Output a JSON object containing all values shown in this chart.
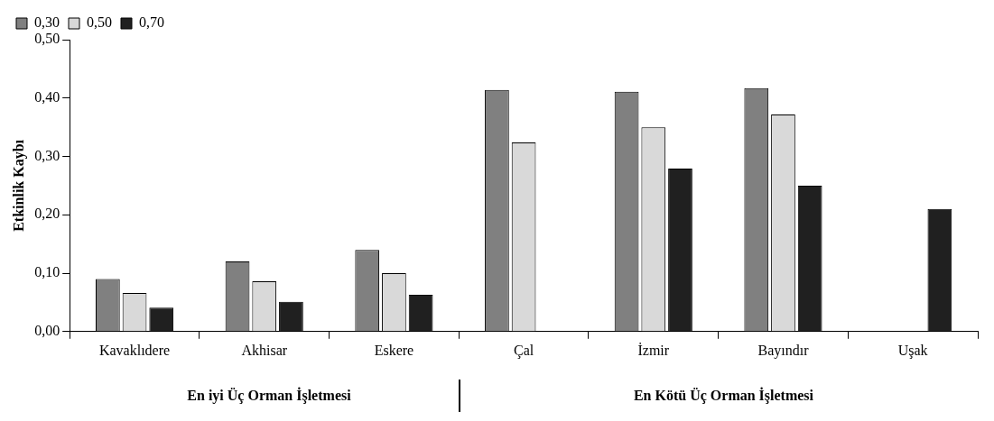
{
  "chart_data": {
    "type": "bar",
    "ylabel": "Etkinlik Kaybı",
    "categories": [
      "Kavaklıdere",
      "Akhisar",
      "Eskere",
      "Çal",
      "İzmir",
      "Bayındır",
      "Uşak"
    ],
    "series": [
      {
        "name": "0,30",
        "color": "#808080",
        "values": [
          0.09,
          0.12,
          0.14,
          0.414,
          0.411,
          0.417,
          null
        ]
      },
      {
        "name": "0,50",
        "color": "#d9d9d9",
        "values": [
          0.066,
          0.086,
          0.1,
          0.324,
          0.35,
          0.372,
          null
        ]
      },
      {
        "name": "0,70",
        "color": "#202020",
        "values": [
          0.041,
          0.051,
          0.063,
          null,
          0.279,
          0.25,
          0.21
        ]
      }
    ],
    "ylim": [
      0,
      0.5
    ],
    "yticks": [
      {
        "value": 0,
        "label": "0,00"
      },
      {
        "value": 0.1,
        "label": "0,10"
      },
      {
        "value": 0.2,
        "label": "0,20"
      },
      {
        "value": 0.3,
        "label": "0,30"
      },
      {
        "value": 0.4,
        "label": "0,40"
      },
      {
        "value": 0.5,
        "label": "0,50"
      }
    ],
    "legend": "top",
    "annotations": [
      "En iyi Üç Orman İşletmesi",
      "En Kötü Üç Orman İşletmesi"
    ]
  }
}
